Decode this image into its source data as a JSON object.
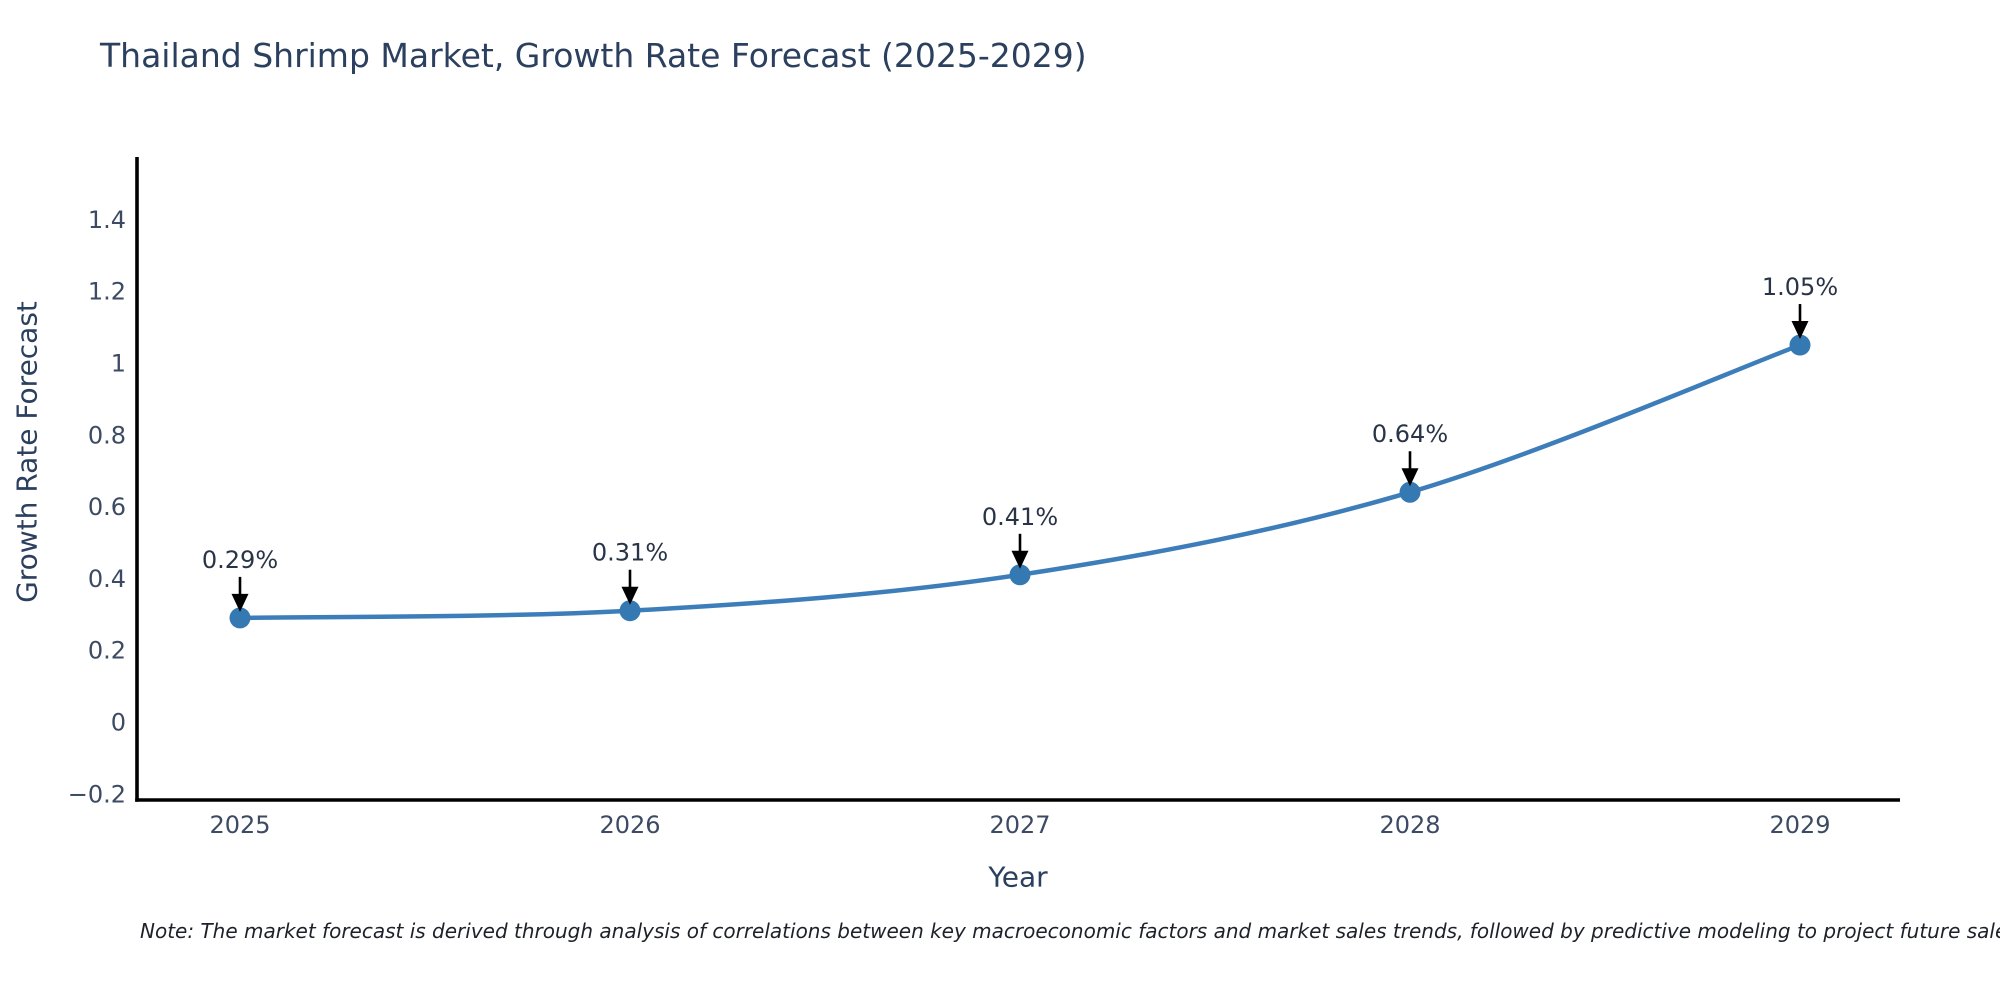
{
  "chart_data": {
    "type": "line",
    "title": "Thailand Shrimp Market, Growth Rate Forecast (2025-2029)",
    "xlabel": "Year",
    "ylabel": "Growth Rate Forecast",
    "categories": [
      "2025",
      "2026",
      "2027",
      "2028",
      "2029"
    ],
    "values": [
      0.29,
      0.31,
      0.41,
      0.64,
      1.05
    ],
    "point_labels": [
      "0.29%",
      "0.31%",
      "0.41%",
      "0.64%",
      "1.05%"
    ],
    "y_ticks": [
      -0.2,
      0,
      0.2,
      0.4,
      0.6,
      0.8,
      1,
      1.2,
      1.4
    ],
    "y_tick_labels": [
      "−0.2",
      "0",
      "0.2",
      "0.4",
      "0.6",
      "0.8",
      "1",
      "1.2",
      "1.4"
    ],
    "ylim": [
      -0.22,
      1.57
    ],
    "grid": false,
    "legend": "none",
    "line_shape": "spline",
    "colors": {
      "title": "#2b3f5e",
      "axis_title": "#2b3f5e",
      "tick_label": "#3c4b63",
      "line": "#3d7eba",
      "marker": "#3579b3",
      "annotation_text": "#2a3447",
      "arrow": "#000000",
      "spine": "#000000",
      "note": "#1d2129"
    },
    "note": "Note: The market forecast is derived through analysis of correlations between key macroeconomic factors and market sales trends, followed by predictive modeling to project future sales."
  }
}
